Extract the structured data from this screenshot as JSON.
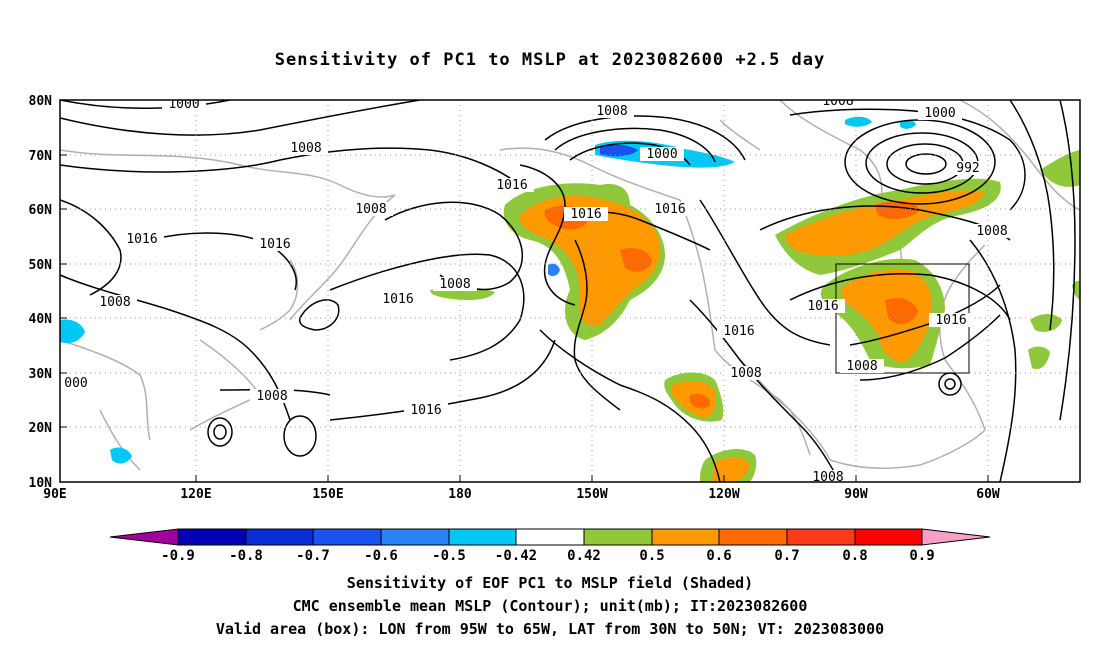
{
  "title": "Sensitivity of PC1 to MSLP at 2023082600 +2.5 day",
  "map": {
    "lat_labels": [
      "80N",
      "70N",
      "60N",
      "50N",
      "40N",
      "30N",
      "20N",
      "10N"
    ],
    "lon_labels": [
      "90E",
      "120E",
      "150E",
      "180",
      "150W",
      "120W",
      "90W",
      "60W"
    ],
    "contour_labels": [
      "1000",
      "1008",
      "1016",
      "1008",
      "1016",
      "1008",
      "1008",
      "1000",
      "1016",
      "1016",
      "1008",
      "1016",
      "1016",
      "1008",
      "1000",
      "992",
      "1008",
      "1016",
      "1016",
      "1008",
      "1016",
      "1008",
      "1008",
      "1016",
      "1008",
      "1008",
      "000"
    ],
    "box": {
      "lon_from": "95W",
      "lon_to": "65W",
      "lat_from": "30N",
      "lat_to": "50N"
    }
  },
  "colorbar": {
    "labels": [
      "-0.9",
      "-0.8",
      "-0.7",
      "-0.6",
      "-0.5",
      "-0.42",
      "0.42",
      "0.5",
      "0.6",
      "0.7",
      "0.8",
      "0.9"
    ],
    "colors": [
      "#a0009e",
      "#0000b4",
      "#0a2cd8",
      "#1a52f0",
      "#2a82f5",
      "#0aa0f2",
      "#00c8f5",
      "#ffffff",
      "#8fc83a",
      "#ff9900",
      "#ff6a00",
      "#ff3a1a",
      "#ff0000",
      "#f7a0c8"
    ]
  },
  "captions": {
    "line1": "Sensitivity of EOF PC1 to MSLP field (Shaded)",
    "line2": "CMC ensemble mean MSLP (Contour); unit(mb); IT:2023082600",
    "line3": "Valid area (box): LON from 95W to 65W, LAT from 30N to 50N; VT: 2023083000"
  }
}
